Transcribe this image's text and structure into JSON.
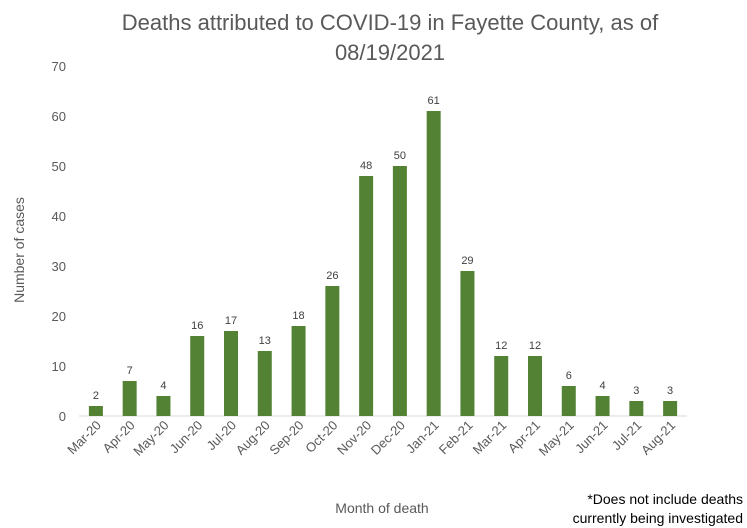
{
  "chart_data": {
    "type": "bar",
    "title": "Deaths attributed to COVID-19 in Fayette County, as of 08/19/2021",
    "xlabel": "Month of death",
    "ylabel": "Number of cases",
    "ylim": [
      0,
      70
    ],
    "yticks": [
      0,
      10,
      20,
      30,
      40,
      50,
      60,
      70
    ],
    "grid": false,
    "legend": "none",
    "bar_color": "#548235",
    "categories": [
      "Mar-20",
      "Apr-20",
      "May-20",
      "Jun-20",
      "Jul-20",
      "Aug-20",
      "Sep-20",
      "Oct-20",
      "Nov-20",
      "Dec-20",
      "Jan-21",
      "Feb-21",
      "Mar-21",
      "Apr-21",
      "May-21",
      "Jun-21",
      "Jul-21",
      "Aug-21"
    ],
    "values": [
      2,
      7,
      4,
      16,
      17,
      13,
      18,
      26,
      48,
      50,
      61,
      29,
      12,
      12,
      6,
      4,
      3,
      3
    ]
  },
  "footnote": {
    "line1": "*Does not include deaths",
    "line2": "currently being investigated"
  }
}
